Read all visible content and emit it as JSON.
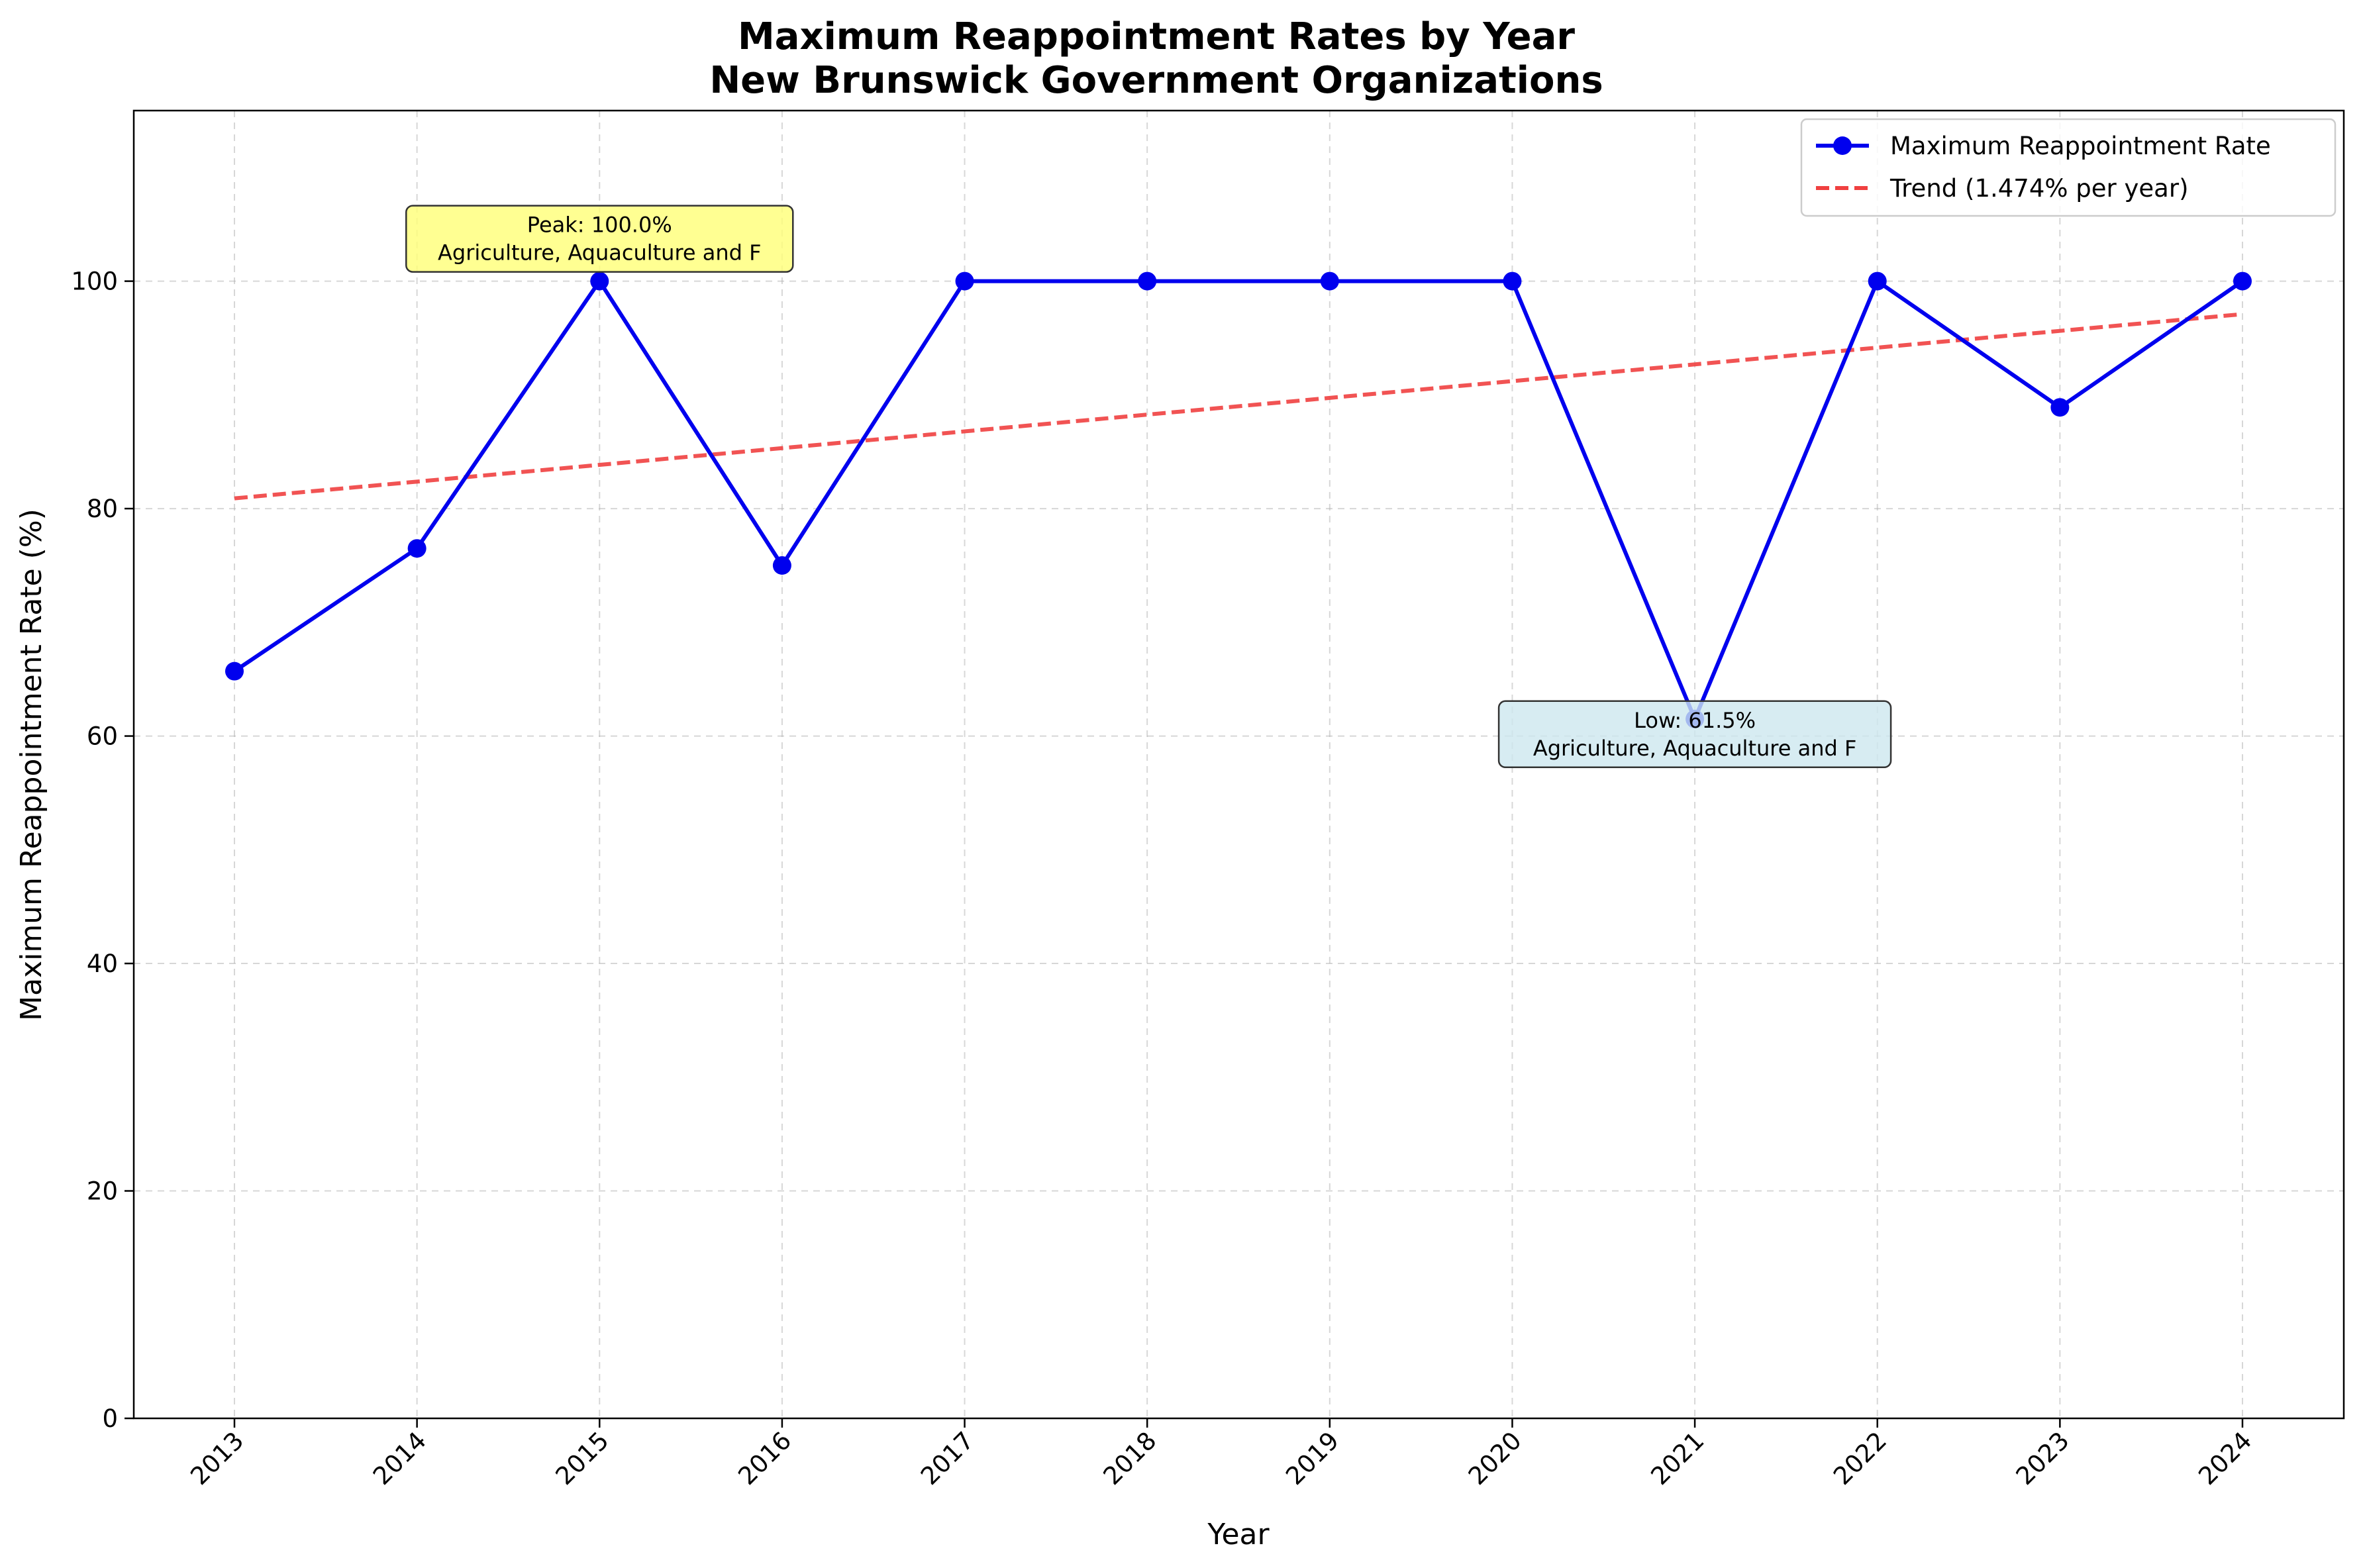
{
  "chart_data": {
    "type": "line",
    "title": [
      "Maximum Reappointment Rates by Year",
      "New Brunswick Government Organizations"
    ],
    "xlabel": "Year",
    "ylabel": "Maximum Reappointment Rate (%)",
    "x": [
      2013,
      2014,
      2015,
      2016,
      2017,
      2018,
      2019,
      2020,
      2021,
      2022,
      2023,
      2024
    ],
    "x_tick_labels": [
      "2013",
      "2014",
      "2015",
      "2016",
      "2017",
      "2018",
      "2019",
      "2020",
      "2021",
      "2022",
      "2023",
      "2024"
    ],
    "ylim": [
      0,
      115
    ],
    "y_ticks": [
      0,
      20,
      40,
      60,
      80,
      100
    ],
    "y_tick_labels": [
      "0",
      "20",
      "40",
      "60",
      "80",
      "100"
    ],
    "grid": true,
    "legend_position": "top-right",
    "series": [
      {
        "name": "Maximum Reappointment Rate",
        "color": "#0000ee",
        "style": "solid-with-markers",
        "values": [
          65.7,
          76.5,
          100.0,
          75.0,
          100.0,
          100.0,
          100.0,
          100.0,
          61.5,
          100.0,
          88.9,
          100.0
        ]
      },
      {
        "name": "Trend (1.474% per year)",
        "color": "#f04040",
        "style": "dashed",
        "start": [
          2013,
          80.9
        ],
        "end": [
          2024,
          97.1
        ]
      }
    ],
    "annotations": [
      {
        "lines": [
          "Peak: 100.0%",
          "Agriculture, Aquaculture and F"
        ],
        "x": 2015,
        "y": 100.0,
        "background": "#ffff77"
      },
      {
        "lines": [
          "Low: 61.5%",
          "Agriculture, Aquaculture and F"
        ],
        "x": 2021,
        "y": 61.5,
        "background": "#cde7ef"
      }
    ]
  }
}
